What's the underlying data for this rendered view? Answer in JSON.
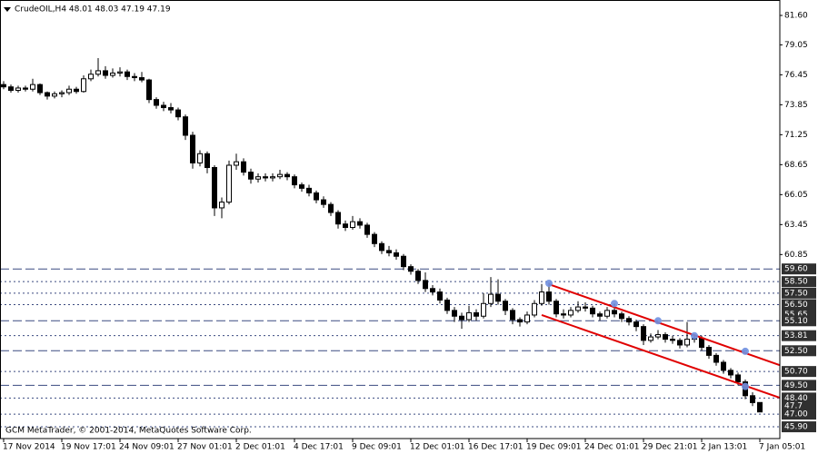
{
  "chart_data": {
    "type": "candlestick",
    "title": "CrudeOIL,H4  48.01 48.03 47.19 47.19",
    "footer": "GCM MetaTrader, © 2001-2014, MetaQuotes Software Corp.",
    "ylim": [
      44.88,
      82.94
    ],
    "yticks": [
      {
        "value": 81.6,
        "label": "81.60"
      },
      79.05,
      76.45,
      73.85,
      71.25,
      68.65,
      66.05,
      63.45,
      60.85
    ],
    "levels": [
      {
        "value": 59.6,
        "label": "59.60",
        "style": "dashed"
      },
      {
        "value": 58.5,
        "label": "58.50",
        "style": "dotted"
      },
      {
        "value": 57.5,
        "label": "57.50",
        "style": "dotted"
      },
      {
        "value": 56.5,
        "label": "56.50",
        "style": "dotted"
      },
      {
        "value": 55.65,
        "style": "none"
      },
      {
        "value": 55.1,
        "label": "55.10",
        "style": "dashed"
      },
      {
        "value": 53.81,
        "style": "dotted"
      },
      {
        "value": 52.5,
        "label": "52.50",
        "style": "dashed"
      },
      {
        "value": 50.7,
        "label": "50.70",
        "style": "dotted"
      },
      {
        "value": 49.5,
        "label": "49.50",
        "style": "dashed"
      },
      {
        "value": 48.4,
        "label": "48.40",
        "style": "dotted"
      },
      {
        "value": 47.7,
        "style": "none"
      },
      {
        "value": 47,
        "label": "47.00",
        "style": "dotted"
      },
      {
        "value": 45.9,
        "label": "45.90",
        "style": "dotted"
      }
    ],
    "level_color": "#3a4a80",
    "up_color": "#ffffff",
    "down_color": "#000000",
    "trendlines": [
      {
        "from_index": 75,
        "from": 58.27,
        "to_index": 104,
        "to": 51.86,
        "color": "#e00000"
      },
      {
        "from_index": 74,
        "from": 55.6,
        "to_index": 104,
        "to": 49.02,
        "color": "#e00000"
      }
    ],
    "touch_points": {
      "color": "#7090e0",
      "indexes": [
        75,
        84,
        90,
        95,
        102,
        102
      ],
      "values": [
        58.35,
        56.6,
        55.1,
        53.8,
        52.45,
        49.4
      ]
    },
    "categories": [
      "17 Nov 2014",
      null,
      null,
      null,
      null,
      null,
      null,
      null,
      "19 Nov 17:01",
      null,
      null,
      null,
      null,
      null,
      null,
      null,
      "24 Nov 09:01",
      null,
      null,
      null,
      null,
      null,
      null,
      null,
      "27 Nov 01:01",
      null,
      null,
      null,
      null,
      null,
      null,
      null,
      "2 Dec 01:01",
      null,
      null,
      null,
      null,
      null,
      null,
      null,
      "4 Dec 17:01",
      null,
      null,
      null,
      null,
      null,
      null,
      null,
      "9 Dec 09:01",
      null,
      null,
      null,
      null,
      null,
      null,
      null,
      "12 Dec 01:01",
      null,
      null,
      null,
      null,
      null,
      null,
      null,
      "16 Dec 17:01",
      null,
      null,
      null,
      null,
      null,
      null,
      null,
      "19 Dec 09:01",
      null,
      null,
      null,
      null,
      null,
      null,
      null,
      "24 Dec 01:01",
      null,
      null,
      null,
      null,
      null,
      null,
      null,
      "29 Dec 21:01",
      null,
      null,
      null,
      null,
      null,
      null,
      null,
      "2 Jan 13:01",
      null,
      null,
      null,
      null,
      null,
      null,
      null,
      "7 Jan 05:01"
    ],
    "candles": [
      [
        75.6,
        75.9,
        75.2,
        75.4
      ],
      [
        75.4,
        75.6,
        74.9,
        75.1
      ],
      [
        75.1,
        75.5,
        74.9,
        75.3
      ],
      [
        75.3,
        75.5,
        75.0,
        75.2
      ],
      [
        75.2,
        76.1,
        75.0,
        75.6
      ],
      [
        75.6,
        75.7,
        74.7,
        74.9
      ],
      [
        74.9,
        75.0,
        74.3,
        74.6
      ],
      [
        74.6,
        75.0,
        74.4,
        74.8
      ],
      [
        74.8,
        75.1,
        74.5,
        74.9
      ],
      [
        74.9,
        75.5,
        74.7,
        75.2
      ],
      [
        75.2,
        75.4,
        74.8,
        75.0
      ],
      [
        75.0,
        76.4,
        74.9,
        76.1
      ],
      [
        76.1,
        76.9,
        75.9,
        76.5
      ],
      [
        76.5,
        77.9,
        76.3,
        76.8
      ],
      [
        76.8,
        77.2,
        76.1,
        76.4
      ],
      [
        76.4,
        77.0,
        76.2,
        76.6
      ],
      [
        76.6,
        77.1,
        76.3,
        76.7
      ],
      [
        76.7,
        76.9,
        76.0,
        76.3
      ],
      [
        76.3,
        76.6,
        75.9,
        76.2
      ],
      [
        76.2,
        76.7,
        75.8,
        76.0
      ],
      [
        76.0,
        76.1,
        74.0,
        74.3
      ],
      [
        74.3,
        74.5,
        73.5,
        73.8
      ],
      [
        73.8,
        74.1,
        73.3,
        73.6
      ],
      [
        73.6,
        74.0,
        73.1,
        73.4
      ],
      [
        73.4,
        73.6,
        72.5,
        72.8
      ],
      [
        72.8,
        73.0,
        70.8,
        71.2
      ],
      [
        71.2,
        71.5,
        68.3,
        68.8
      ],
      [
        68.8,
        69.9,
        68.5,
        69.6
      ],
      [
        69.6,
        69.8,
        67.9,
        68.4
      ],
      [
        68.4,
        68.6,
        64.2,
        64.9
      ],
      [
        64.9,
        65.8,
        64.0,
        65.4
      ],
      [
        65.4,
        69.0,
        65.2,
        68.6
      ],
      [
        68.6,
        69.6,
        68.2,
        68.9
      ],
      [
        68.9,
        69.2,
        67.7,
        68.0
      ],
      [
        68.0,
        68.3,
        67.0,
        67.4
      ],
      [
        67.4,
        67.9,
        67.1,
        67.6
      ],
      [
        67.6,
        67.9,
        67.2,
        67.5
      ],
      [
        67.5,
        67.9,
        67.2,
        67.6
      ],
      [
        67.6,
        68.2,
        67.4,
        67.8
      ],
      [
        67.8,
        68.0,
        67.3,
        67.6
      ],
      [
        67.6,
        67.8,
        66.6,
        66.9
      ],
      [
        66.9,
        67.1,
        66.3,
        66.6
      ],
      [
        66.6,
        66.9,
        65.9,
        66.2
      ],
      [
        66.2,
        66.4,
        65.3,
        65.6
      ],
      [
        65.6,
        65.9,
        64.9,
        65.2
      ],
      [
        65.2,
        65.4,
        64.2,
        64.5
      ],
      [
        64.5,
        64.7,
        63.1,
        63.5
      ],
      [
        63.5,
        63.8,
        62.9,
        63.2
      ],
      [
        63.2,
        64.2,
        63.0,
        63.7
      ],
      [
        63.7,
        64.0,
        63.1,
        63.4
      ],
      [
        63.4,
        63.6,
        62.3,
        62.6
      ],
      [
        62.6,
        62.8,
        61.5,
        61.8
      ],
      [
        61.8,
        62.0,
        60.9,
        61.2
      ],
      [
        61.2,
        61.6,
        60.7,
        61.0
      ],
      [
        61.0,
        61.3,
        60.4,
        60.7
      ],
      [
        60.7,
        60.9,
        59.5,
        59.8
      ],
      [
        59.8,
        60.0,
        59.1,
        59.4
      ],
      [
        59.4,
        59.6,
        58.3,
        58.6
      ],
      [
        58.6,
        59.3,
        57.6,
        57.9
      ],
      [
        57.9,
        58.2,
        57.3,
        57.6
      ],
      [
        57.6,
        57.9,
        56.6,
        56.9
      ],
      [
        56.9,
        57.1,
        55.7,
        56.0
      ],
      [
        56.0,
        56.3,
        55.0,
        55.5
      ],
      [
        55.5,
        55.8,
        54.4,
        55.2
      ],
      [
        55.2,
        56.4,
        55.0,
        55.8
      ],
      [
        55.8,
        56.1,
        55.1,
        55.5
      ],
      [
        55.5,
        57.5,
        55.3,
        56.6
      ],
      [
        56.6,
        58.9,
        56.3,
        57.4
      ],
      [
        57.4,
        58.7,
        56.5,
        56.8
      ],
      [
        56.8,
        57.0,
        55.6,
        56.0
      ],
      [
        56.0,
        56.2,
        54.8,
        55.2
      ],
      [
        55.2,
        55.4,
        54.6,
        55.0
      ],
      [
        55.0,
        55.9,
        54.8,
        55.6
      ],
      [
        55.6,
        56.9,
        55.4,
        56.6
      ],
      [
        56.6,
        58.3,
        56.4,
        57.6
      ],
      [
        57.6,
        58.4,
        56.5,
        56.8
      ],
      [
        56.8,
        57.0,
        55.4,
        55.7
      ],
      [
        55.7,
        56.1,
        55.3,
        55.6
      ],
      [
        55.6,
        56.3,
        55.4,
        56.0
      ],
      [
        56.0,
        56.8,
        55.8,
        56.3
      ],
      [
        56.3,
        56.7,
        55.9,
        56.2
      ],
      [
        56.2,
        56.4,
        55.4,
        55.7
      ],
      [
        55.7,
        55.9,
        55.1,
        55.5
      ],
      [
        55.5,
        56.3,
        55.3,
        56.0
      ],
      [
        56.0,
        56.6,
        55.4,
        55.7
      ],
      [
        55.7,
        55.9,
        55.0,
        55.3
      ],
      [
        55.3,
        55.5,
        54.7,
        55.0
      ],
      [
        55.0,
        55.2,
        54.2,
        54.6
      ],
      [
        54.6,
        54.8,
        53.0,
        53.4
      ],
      [
        53.4,
        54.0,
        53.2,
        53.7
      ],
      [
        53.7,
        54.3,
        53.5,
        53.9
      ],
      [
        53.9,
        54.1,
        53.2,
        53.5
      ],
      [
        53.5,
        53.8,
        53.1,
        53.4
      ],
      [
        53.4,
        53.6,
        52.7,
        53.0
      ],
      [
        53.0,
        55.0,
        52.8,
        53.5
      ],
      [
        53.5,
        53.9,
        53.2,
        53.6
      ],
      [
        53.6,
        53.8,
        52.5,
        52.8
      ],
      [
        52.8,
        53.0,
        51.8,
        52.1
      ],
      [
        52.1,
        52.3,
        51.2,
        51.5
      ],
      [
        51.5,
        51.7,
        50.5,
        50.8
      ],
      [
        50.8,
        51.0,
        50.1,
        50.4
      ],
      [
        50.4,
        50.6,
        49.5,
        49.8
      ],
      [
        49.8,
        50.0,
        48.3,
        48.6
      ],
      [
        48.6,
        48.9,
        47.7,
        48.0
      ],
      [
        48.01,
        48.03,
        47.19,
        47.19
      ]
    ]
  }
}
